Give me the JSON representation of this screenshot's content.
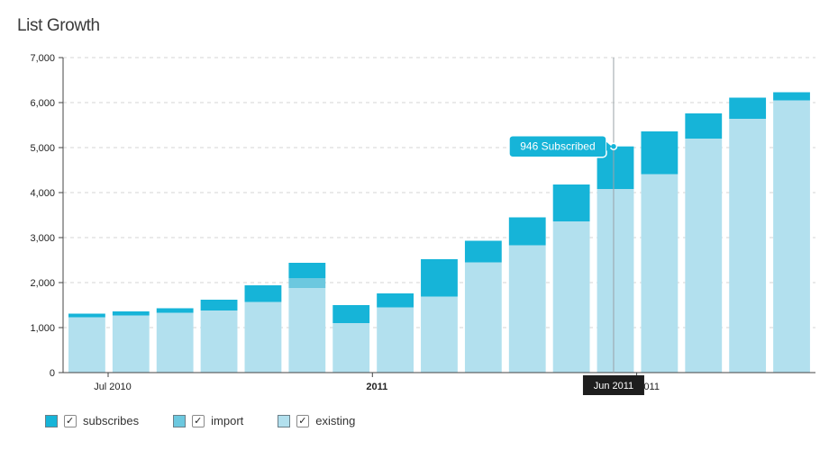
{
  "title": "List Growth",
  "chart_data": {
    "type": "bar",
    "stacked": true,
    "ylim": [
      0,
      7000
    ],
    "yticks": [
      "0",
      "1,000",
      "2,000",
      "3,000",
      "4,000",
      "5,000",
      "6,000",
      "7,000"
    ],
    "ytick_values": [
      0,
      1000,
      2000,
      3000,
      4000,
      5000,
      6000,
      7000
    ],
    "x_labels": [
      {
        "text": "Jul 2010",
        "bar": 0.9,
        "bold": false
      },
      {
        "text": "2011",
        "bar": 6.9,
        "bold": true
      },
      {
        "text": "Jul 2011",
        "bar": 12.9,
        "bold": false
      }
    ],
    "categories": [
      "1",
      "2",
      "3",
      "4",
      "5",
      "6",
      "7",
      "8",
      "9",
      "10",
      "11",
      "12",
      "13",
      "14",
      "15",
      "16",
      "17"
    ],
    "series": [
      {
        "name": "existing",
        "color": "#b2e0ee",
        "values": [
          1230,
          1270,
          1330,
          1380,
          1570,
          1880,
          1100,
          1450,
          1690,
          2450,
          2830,
          3360,
          4080,
          4410,
          5200,
          5640,
          6050
        ]
      },
      {
        "name": "import",
        "color": "#6cc8df",
        "values": [
          0,
          0,
          0,
          0,
          0,
          220,
          0,
          0,
          0,
          0,
          0,
          0,
          0,
          0,
          0,
          0,
          0
        ]
      },
      {
        "name": "subscribes",
        "color": "#16b4d8",
        "values": [
          80,
          90,
          100,
          240,
          370,
          340,
          400,
          310,
          830,
          480,
          620,
          820,
          946,
          950,
          560,
          470,
          180
        ]
      }
    ],
    "grid": true,
    "hover": {
      "bar_index": 12,
      "tooltip": "946 Subscribed",
      "x_label": "Jun 2011"
    }
  },
  "legend": [
    {
      "name": "subscribes",
      "label": "subscribes",
      "color": "#16b4d8",
      "checked": true
    },
    {
      "name": "import",
      "label": "import",
      "color": "#6cc8df",
      "checked": true
    },
    {
      "name": "existing",
      "label": "existing",
      "color": "#b2e0ee",
      "checked": true
    }
  ]
}
